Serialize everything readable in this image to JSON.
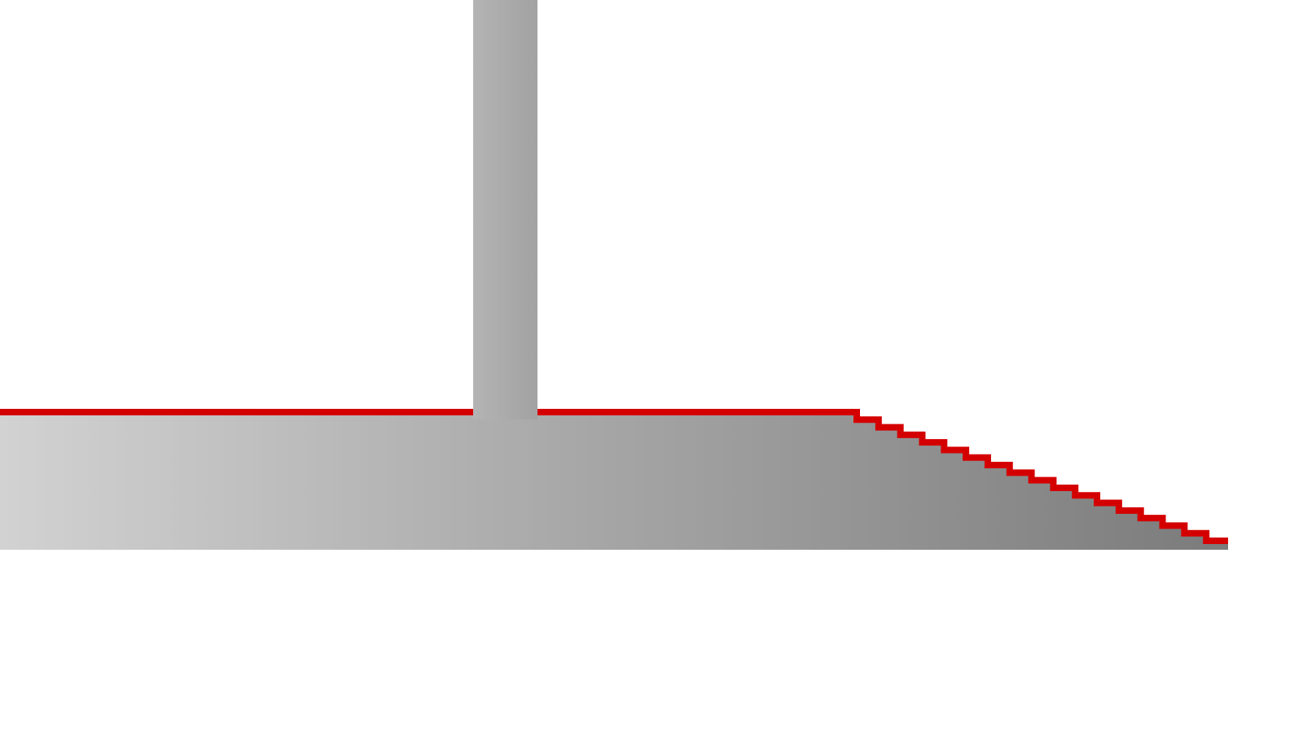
{
  "diagram": {
    "description_visible_text": "",
    "colors": {
      "background": "#ffffff",
      "edge_line": "#d40000",
      "gradient_light": "#d2d2d2",
      "gradient_mid": "#a9a9a9",
      "gradient_dark": "#7b7b7b",
      "pillar_light": "#b4b4b4",
      "pillar_dark": "#a2a2a2"
    },
    "elements": {
      "vertical_pillar": "vertical-pillar",
      "ground_slab": "ground-slab",
      "edge_outline": "red-edge-outline",
      "stair_steps": 17
    }
  }
}
